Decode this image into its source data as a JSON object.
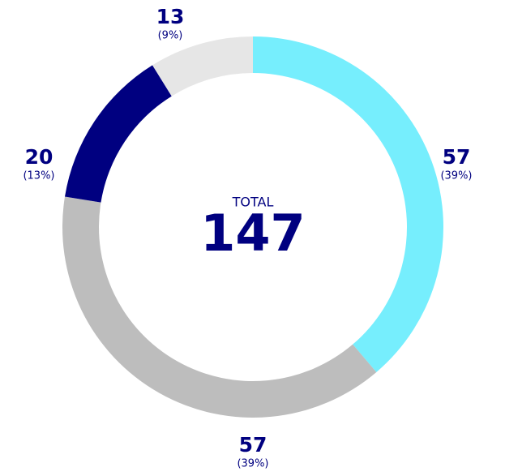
{
  "chart_data": {
    "type": "donut",
    "categories": [
      null,
      null,
      null,
      null
    ],
    "values": [
      57,
      57,
      20,
      13
    ],
    "percent_labels": [
      "(39%)",
      "(39%)",
      "(13%)",
      "(9%)"
    ],
    "colors": [
      "#76eefd",
      "#bdbdbd",
      "#000080",
      "#e6e6e6"
    ],
    "total_label": "TOTAL",
    "total": 147
  }
}
